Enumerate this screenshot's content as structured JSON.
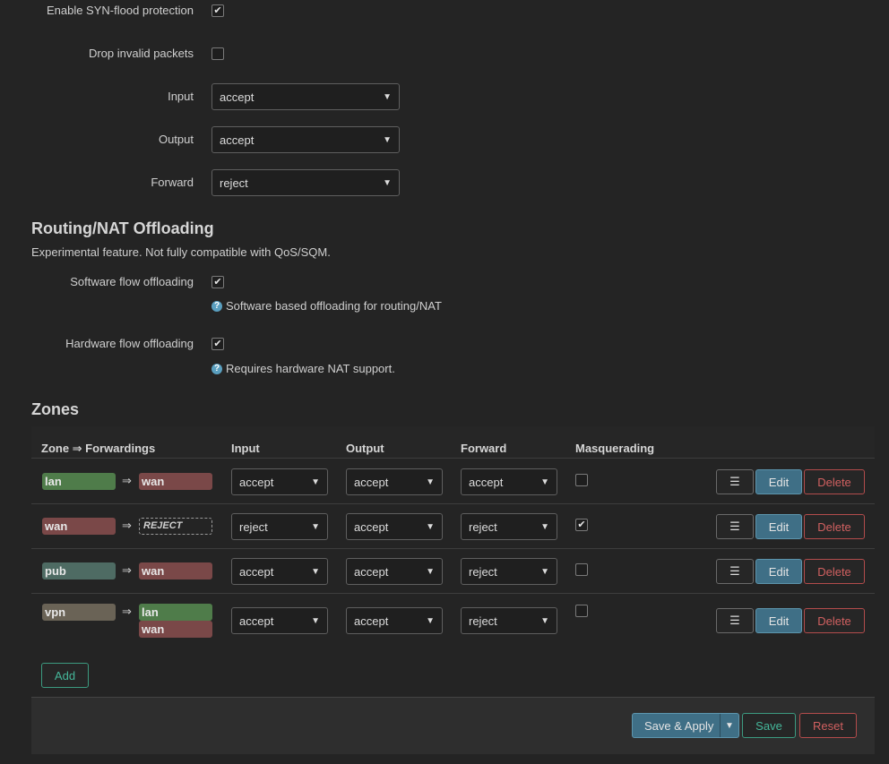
{
  "general": {
    "syn_flood_label": "Enable SYN-flood protection",
    "syn_flood_checked": true,
    "drop_invalid_label": "Drop invalid packets",
    "drop_invalid_checked": false,
    "input_label": "Input",
    "input_value": "accept",
    "output_label": "Output",
    "output_value": "accept",
    "forward_label": "Forward",
    "forward_value": "reject"
  },
  "offloading": {
    "title": "Routing/NAT Offloading",
    "description": "Experimental feature. Not fully compatible with QoS/SQM.",
    "software_label": "Software flow offloading",
    "software_checked": true,
    "software_help": "Software based offloading for routing/NAT",
    "hardware_label": "Hardware flow offloading",
    "hardware_checked": true,
    "hardware_help": "Requires hardware NAT support."
  },
  "zones": {
    "title": "Zones",
    "columns": [
      "Zone ⇒ Forwardings",
      "Input",
      "Output",
      "Forward",
      "Masquerading"
    ],
    "arrow": "⇒",
    "rows": [
      {
        "zone": "lan",
        "forwards": [
          "wan"
        ],
        "input": "accept",
        "output": "accept",
        "forward": "accept",
        "masq": false
      },
      {
        "zone": "wan",
        "forwards": [
          "REJECT"
        ],
        "input": "reject",
        "output": "accept",
        "forward": "reject",
        "masq": true
      },
      {
        "zone": "pub",
        "forwards": [
          "wan"
        ],
        "input": "accept",
        "output": "accept",
        "forward": "reject",
        "masq": false
      },
      {
        "zone": "vpn",
        "forwards": [
          "lan",
          "wan"
        ],
        "input": "accept",
        "output": "accept",
        "forward": "reject",
        "masq": false
      }
    ],
    "menu_label": "☰",
    "edit_label": "Edit",
    "delete_label": "Delete",
    "add_label": "Add"
  },
  "footer": {
    "save_apply_label": "Save & Apply",
    "save_label": "Save",
    "reset_label": "Reset"
  },
  "colors": {
    "background": "#242424",
    "lan": "#4f7c4a",
    "wan": "#7a4848",
    "pub": "#4e6b63",
    "vpn": "#6a6356",
    "primary_button": "#3f6f86",
    "positive_border": "#3c9a80",
    "negative_border": "#b34c4c"
  }
}
